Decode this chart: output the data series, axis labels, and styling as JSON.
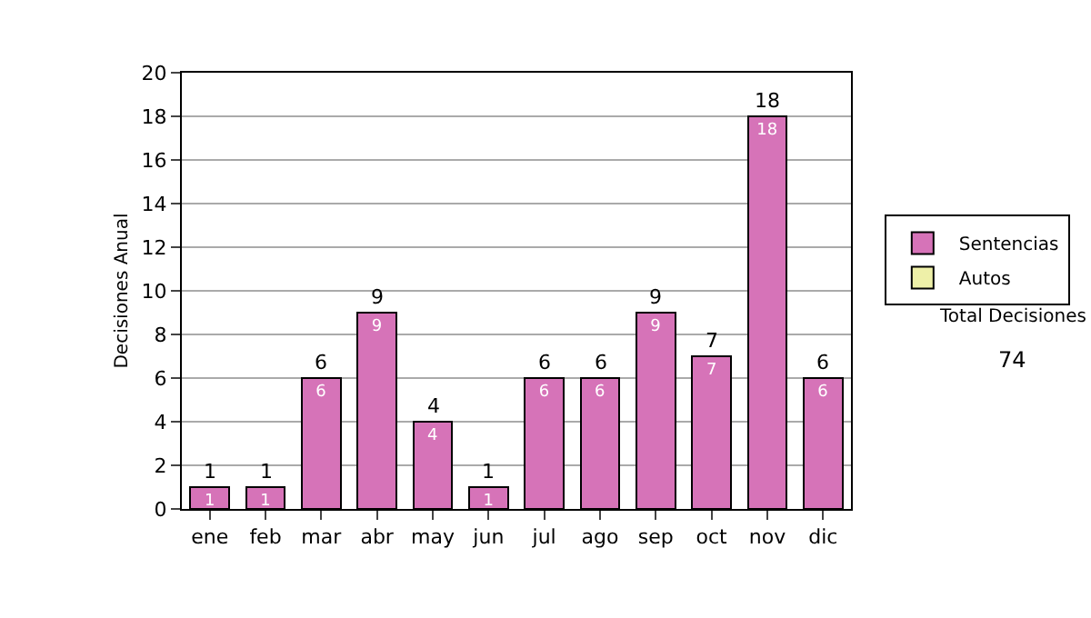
{
  "chart_data": {
    "type": "bar",
    "ylabel": "Decisiones Anual",
    "categories": [
      "ene",
      "feb",
      "mar",
      "abr",
      "may",
      "jun",
      "jul",
      "ago",
      "sep",
      "oct",
      "nov",
      "dic"
    ],
    "series": [
      {
        "name": "Sentencias",
        "color": "#d673b8",
        "values": [
          1,
          1,
          6,
          9,
          4,
          1,
          6,
          6,
          9,
          7,
          18,
          6
        ]
      },
      {
        "name": "Autos",
        "color": "#eef0a8",
        "values": [
          null,
          null,
          null,
          null,
          null,
          null,
          null,
          null,
          null,
          null,
          null,
          null
        ]
      }
    ],
    "stacked": true,
    "data_labels": true,
    "totals": [
      "1",
      "1",
      "6",
      "9",
      "4",
      "1",
      "6",
      "6",
      "9",
      "7",
      "18",
      "6"
    ],
    "ylim": [
      0,
      20
    ],
    "yticks": [
      0,
      2,
      4,
      6,
      8,
      10,
      12,
      14,
      16,
      18,
      20
    ],
    "grid": "y",
    "legend": "right",
    "annotations": [
      "Total Decisiones",
      "74"
    ]
  }
}
